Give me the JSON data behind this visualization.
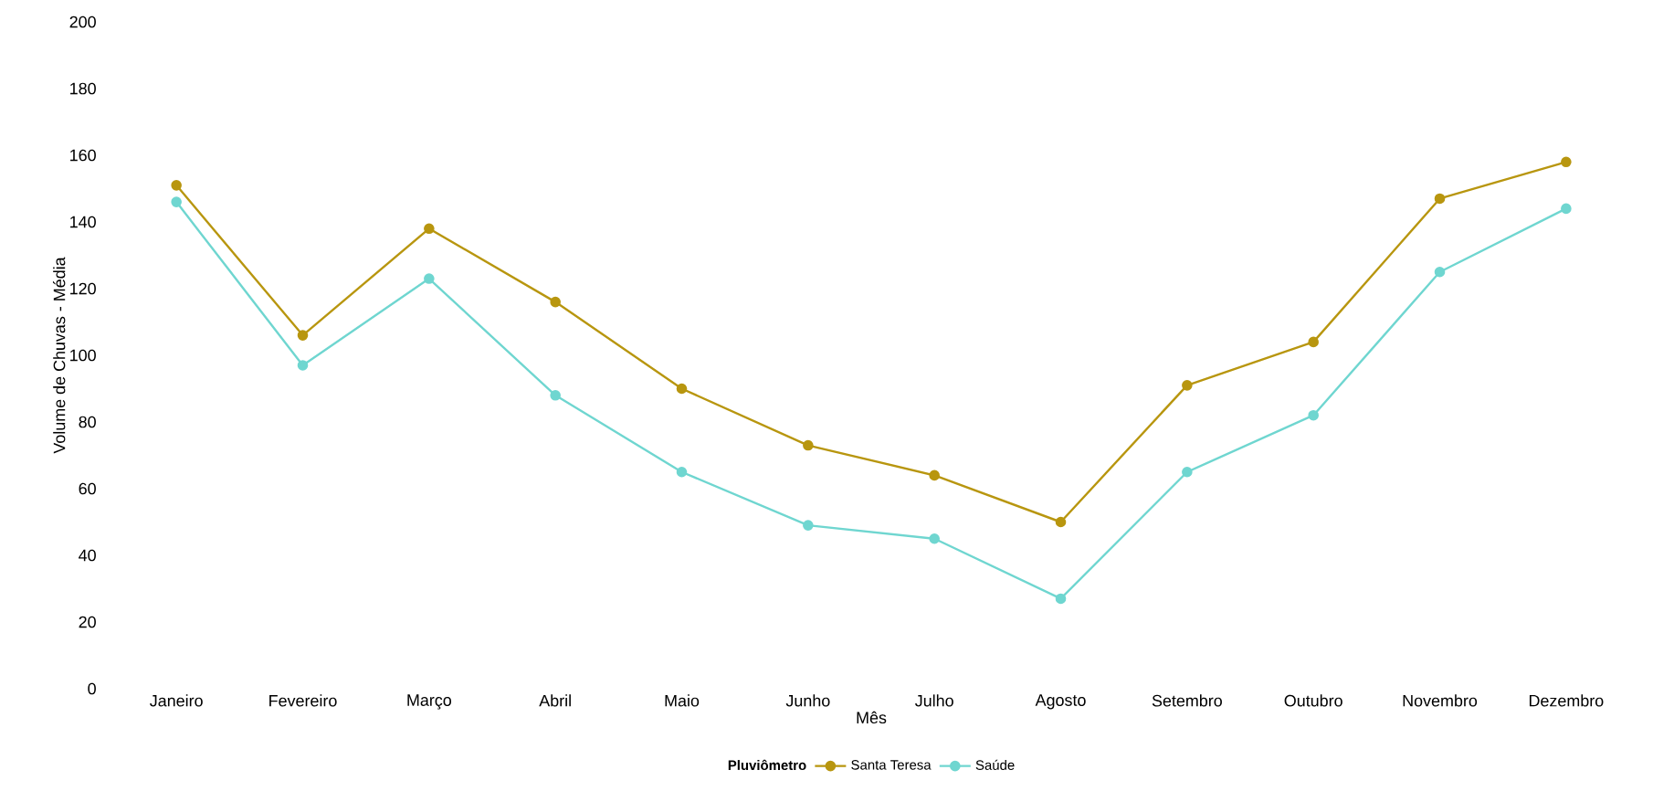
{
  "chart_data": {
    "type": "line",
    "xlabel": "Mês",
    "ylabel": "Volume de Chuvas - Média",
    "legend_title": "Pluviômetro",
    "categories": [
      "Janeiro",
      "Fevereiro",
      "Março",
      "Abril",
      "Maio",
      "Junho",
      "Julho",
      "Agosto",
      "Setembro",
      "Outubro",
      "Novembro",
      "Dezembro"
    ],
    "series": [
      {
        "name": "Santa Teresa",
        "color": "#b8960f",
        "values": [
          151,
          106,
          138,
          116,
          90,
          73,
          64,
          50,
          91,
          104,
          147,
          158
        ]
      },
      {
        "name": "Saúde",
        "color": "#6fd6d0",
        "values": [
          146,
          97,
          123,
          88,
          65,
          49,
          45,
          27,
          65,
          82,
          125,
          144
        ]
      }
    ],
    "ylim": [
      0,
      200
    ],
    "yticks": [
      0,
      20,
      40,
      60,
      80,
      100,
      120,
      140,
      160,
      180,
      200
    ],
    "grid": false,
    "legend": "bottom",
    "marker": "circle",
    "line_style": "solid"
  }
}
